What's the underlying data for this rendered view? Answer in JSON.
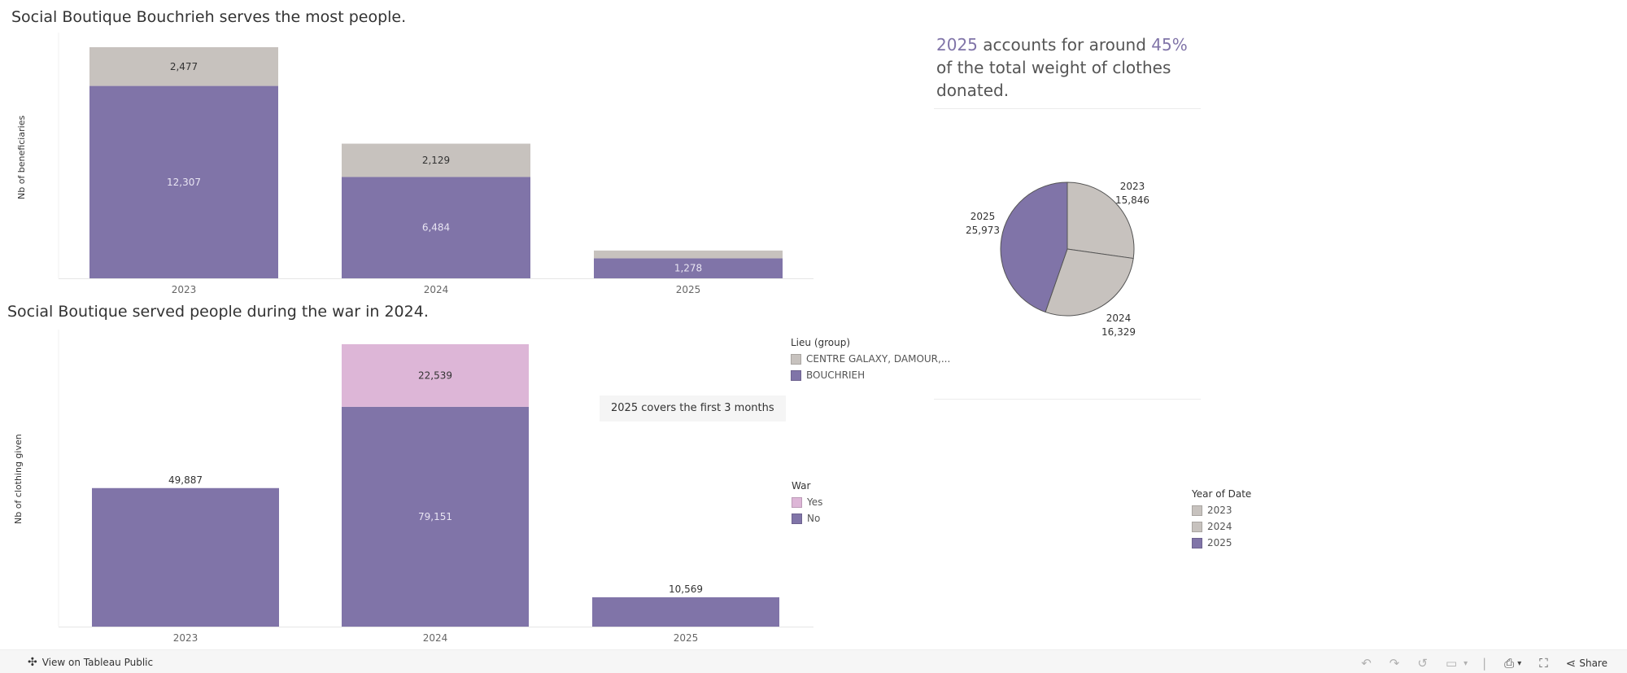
{
  "colors": {
    "purple": "#8074a8",
    "gray": "#c7c2be",
    "pink": "#ddb6d7"
  },
  "chart1": {
    "title": "Social Boutique Bouchrieh serves the most people."
  },
  "chart2": {
    "title": "Social Boutique served people during the war in 2024.",
    "callout": "2025 covers the first 3 months"
  },
  "insight": {
    "year": "2025",
    "text1": " accounts for around ",
    "pct": "45%",
    "text2": " of the total weight of clothes donated."
  },
  "legend_lieu": {
    "title": "Lieu (group)",
    "items": [
      "CENTRE GALAXY, DAMOUR,...",
      "BOUCHRIEH"
    ]
  },
  "legend_war": {
    "title": "War",
    "items": [
      "Yes",
      "No"
    ]
  },
  "legend_year": {
    "title": "Year of Date",
    "items": [
      "2023",
      "2024",
      "2025"
    ]
  },
  "footer": {
    "view_label": "View on Tableau Public",
    "share_label": "Share"
  },
  "chart_data": [
    {
      "type": "bar",
      "stacked": true,
      "title": "Social Boutique Bouchrieh serves the most people.",
      "ylabel": "Nb of beneficiaries",
      "xlabel": "",
      "categories": [
        "2023",
        "2024",
        "2025"
      ],
      "series": [
        {
          "name": "BOUCHRIEH",
          "color": "#8074a8",
          "values": [
            12307,
            6484,
            1278
          ],
          "labels": [
            "12,307",
            "6,484",
            "1,278"
          ]
        },
        {
          "name": "CENTRE GALAXY, DAMOUR,...",
          "color": "#c7c2be",
          "values": [
            2477,
            2129,
            500
          ],
          "labels": [
            "2,477",
            "2,129",
            ""
          ]
        }
      ],
      "ylim": [
        0,
        14784
      ]
    },
    {
      "type": "bar",
      "stacked": true,
      "title": "Social Boutique served people during the war in 2024.",
      "ylabel": "Nb of clothing given",
      "xlabel": "",
      "categories": [
        "2023",
        "2024",
        "2025"
      ],
      "series": [
        {
          "name": "No",
          "color": "#8074a8",
          "values": [
            49887,
            79151,
            10569
          ],
          "labels": [
            "",
            "79,151",
            ""
          ]
        },
        {
          "name": "Yes",
          "color": "#ddb6d7",
          "values": [
            0,
            22539,
            0
          ],
          "labels": [
            "",
            "22,539",
            ""
          ]
        }
      ],
      "totals": [
        "49,887",
        "",
        "10,569"
      ],
      "ylim": [
        0,
        101690
      ]
    },
    {
      "type": "pie",
      "title": "",
      "slices": [
        {
          "label": "2023",
          "value": 15846,
          "value_label": "15,846",
          "color": "#c7c2be"
        },
        {
          "label": "2024",
          "value": 16329,
          "value_label": "16,329",
          "color": "#c7c2be"
        },
        {
          "label": "2025",
          "value": 25973,
          "value_label": "25,973",
          "color": "#8074a8"
        }
      ]
    }
  ]
}
